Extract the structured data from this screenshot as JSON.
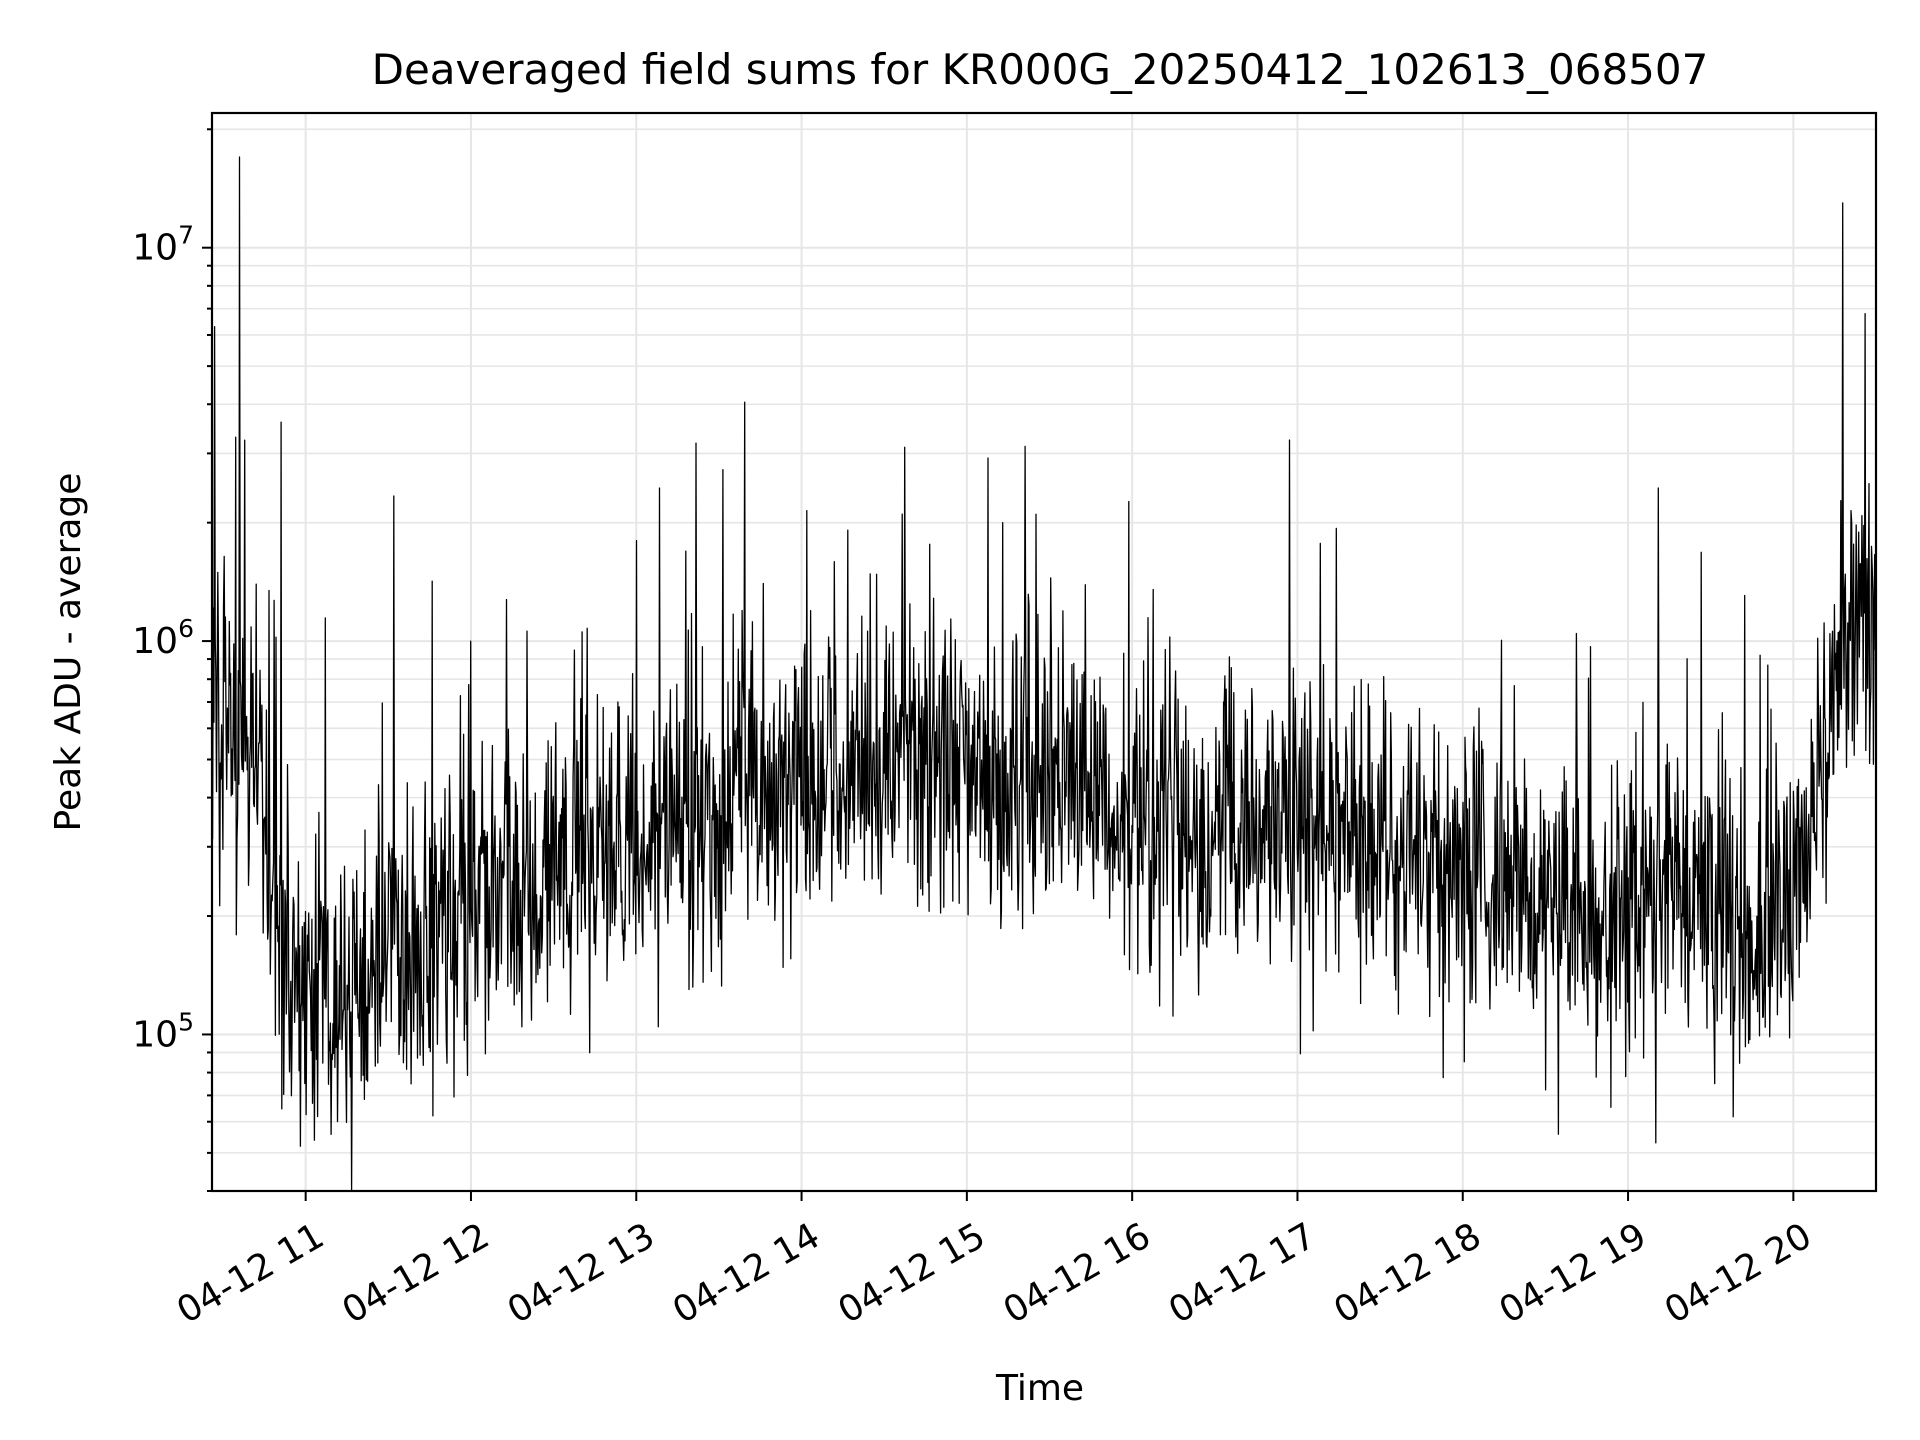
{
  "chart_data": {
    "type": "line",
    "title": "Deaveraged field sums for KR000G_20250412_102613_068507",
    "xlabel": "Time",
    "ylabel": "Peak ADU - average",
    "yscale": "log",
    "ylim": [
      40000,
      22000000
    ],
    "xlim": [
      "2025-04-12 10:26",
      "2025-04-12 20:30"
    ],
    "grid": true,
    "line_color": "#000000",
    "grid_color": "#e6e6e6",
    "x_ticks": [
      {
        "time": "2025-04-12 11:00",
        "label": "04-12 11"
      },
      {
        "time": "2025-04-12 12:00",
        "label": "04-12 12"
      },
      {
        "time": "2025-04-12 13:00",
        "label": "04-12 13"
      },
      {
        "time": "2025-04-12 14:00",
        "label": "04-12 14"
      },
      {
        "time": "2025-04-12 15:00",
        "label": "04-12 15"
      },
      {
        "time": "2025-04-12 16:00",
        "label": "04-12 16"
      },
      {
        "time": "2025-04-12 17:00",
        "label": "04-12 17"
      },
      {
        "time": "2025-04-12 18:00",
        "label": "04-12 18"
      },
      {
        "time": "2025-04-12 19:00",
        "label": "04-12 19"
      },
      {
        "time": "2025-04-12 20:00",
        "label": "04-12 20"
      }
    ],
    "y_ticks": [
      {
        "value": 100000,
        "base": "10",
        "exp": "5"
      },
      {
        "value": 1000000,
        "base": "10",
        "exp": "6"
      },
      {
        "value": 10000000,
        "base": "10",
        "exp": "7"
      }
    ],
    "series": [
      {
        "x": [
          "2025-04-12 10:26",
          "2025-04-12 10:30",
          "2025-04-12 10:35",
          "2025-04-12 10:40",
          "2025-04-12 10:45",
          "2025-04-12 10:50",
          "2025-04-12 10:55",
          "2025-04-12 11:00",
          "2025-04-12 11:10",
          "2025-04-12 11:20",
          "2025-04-12 11:30",
          "2025-04-12 11:40",
          "2025-04-12 11:50",
          "2025-04-12 12:00",
          "2025-04-12 12:15",
          "2025-04-12 12:30",
          "2025-04-12 12:45",
          "2025-04-12 13:00",
          "2025-04-12 13:15",
          "2025-04-12 13:30",
          "2025-04-12 13:45",
          "2025-04-12 14:00",
          "2025-04-12 14:15",
          "2025-04-12 14:30",
          "2025-04-12 14:45",
          "2025-04-12 15:00",
          "2025-04-12 15:15",
          "2025-04-12 15:30",
          "2025-04-12 15:45",
          "2025-04-12 16:00",
          "2025-04-12 16:15",
          "2025-04-12 16:30",
          "2025-04-12 16:45",
          "2025-04-12 17:00",
          "2025-04-12 17:15",
          "2025-04-12 17:30",
          "2025-04-12 17:45",
          "2025-04-12 18:00",
          "2025-04-12 18:15",
          "2025-04-12 18:30",
          "2025-04-12 18:45",
          "2025-04-12 19:00",
          "2025-04-12 19:15",
          "2025-04-12 19:30",
          "2025-04-12 19:45",
          "2025-04-12 20:00",
          "2025-04-12 20:10",
          "2025-04-12 20:20",
          "2025-04-12 20:30"
        ],
        "y": [
          600000,
          700000,
          600000,
          550000,
          400000,
          200000,
          150000,
          110000,
          120000,
          130000,
          150000,
          170000,
          200000,
          220000,
          250000,
          280000,
          300000,
          300000,
          330000,
          360000,
          420000,
          450000,
          480000,
          520000,
          540000,
          500000,
          480000,
          460000,
          420000,
          380000,
          330000,
          320000,
          340000,
          350000,
          330000,
          300000,
          260000,
          240000,
          230000,
          220000,
          210000,
          200000,
          260000,
          200000,
          170000,
          220000,
          500000,
          1100000,
          1300000
        ]
      }
    ]
  }
}
